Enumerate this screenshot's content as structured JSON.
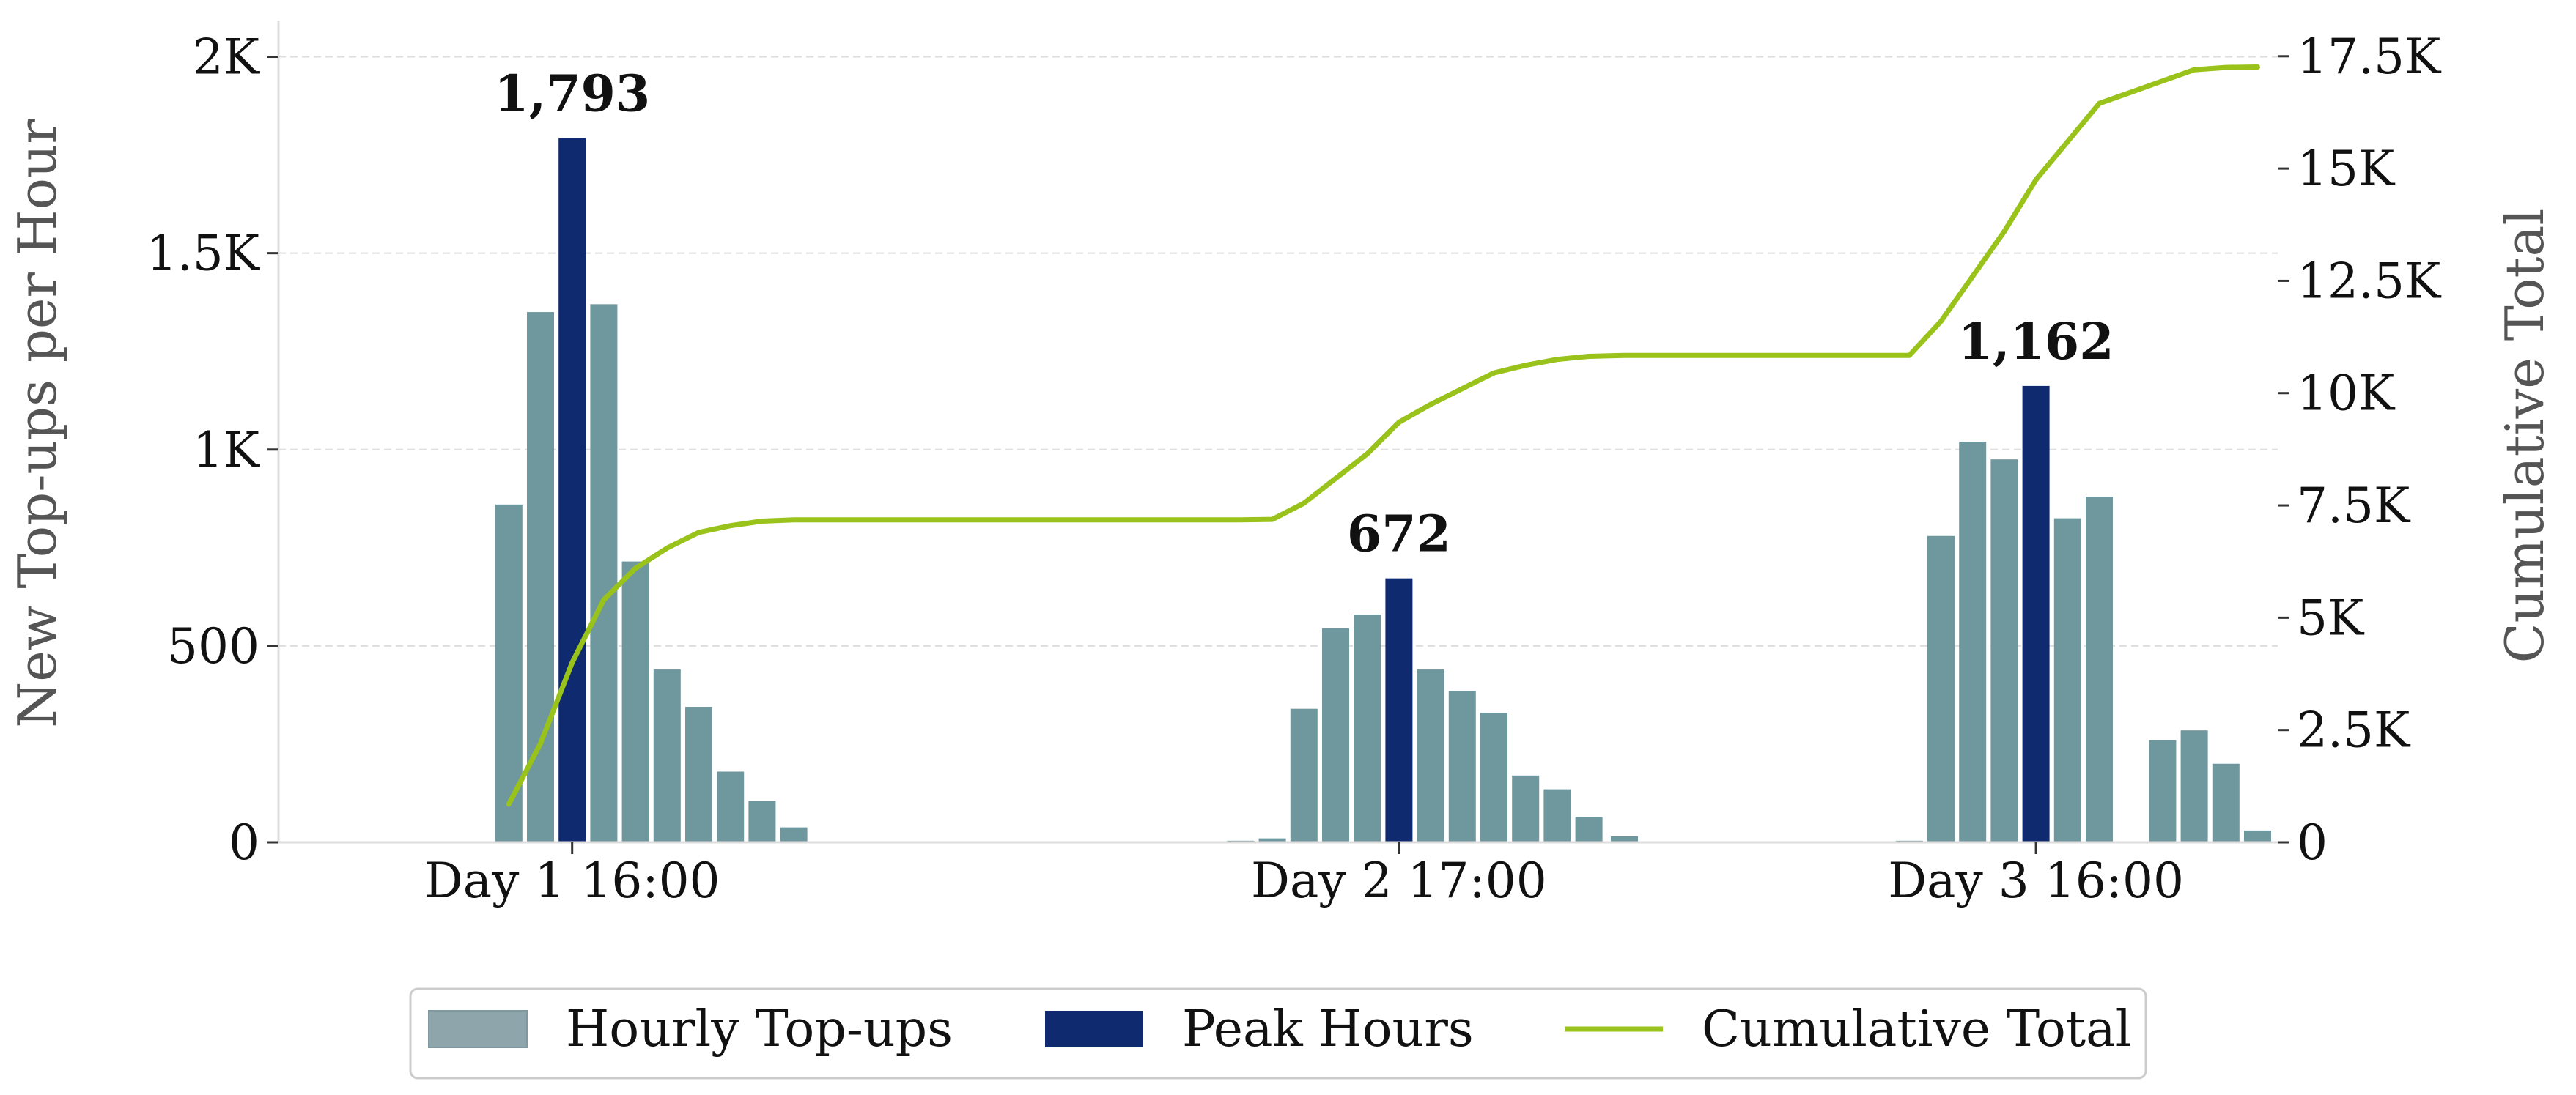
{
  "chart_data": {
    "type": "bar",
    "x_tick_labels": [
      "Day 1 16:00",
      "Day 2 17:00",
      "Day 3 16:00"
    ],
    "ylabel": "New Top-ups per Hour",
    "y2label": "Cumulative Total",
    "ylim": [
      0,
      2070
    ],
    "y2lim": [
      0,
      18100
    ],
    "yticks": [
      0,
      500,
      1000,
      1500,
      2000
    ],
    "ytick_labels": [
      "0",
      "500",
      "1K",
      "1.5K",
      "2K"
    ],
    "y2ticks": [
      0,
      2500,
      5000,
      7500,
      10000,
      12500,
      15000,
      17500
    ],
    "y2tick_labels": [
      "0",
      "2.5K",
      "5K",
      "7.5K",
      "10K",
      "12.5K",
      "15K",
      "17.5K"
    ],
    "grid": "horizontal dashed",
    "legend_position": "bottom-center",
    "colors": {
      "hourly": "#6e979e",
      "peak": "#0f2a6e",
      "cumulative": "#99c31a",
      "hourly_legend": "#8ea6ab"
    },
    "series": [
      {
        "name": "Hourly Top-ups",
        "kind": "bar",
        "points": [
          {
            "day": 1,
            "hour": 14,
            "value": 860
          },
          {
            "day": 1,
            "hour": 15,
            "value": 1350
          },
          {
            "day": 1,
            "hour": 17,
            "value": 1370
          },
          {
            "day": 1,
            "hour": 18,
            "value": 715
          },
          {
            "day": 1,
            "hour": 19,
            "value": 440
          },
          {
            "day": 1,
            "hour": 20,
            "value": 345
          },
          {
            "day": 1,
            "hour": 21,
            "value": 180
          },
          {
            "day": 1,
            "hour": 22,
            "value": 105
          },
          {
            "day": 1,
            "hour": 23,
            "value": 38
          },
          {
            "day": 2,
            "hour": 12,
            "value": 4
          },
          {
            "day": 2,
            "hour": 13,
            "value": 10
          },
          {
            "day": 2,
            "hour": 14,
            "value": 340
          },
          {
            "day": 2,
            "hour": 15,
            "value": 545
          },
          {
            "day": 2,
            "hour": 16,
            "value": 580
          },
          {
            "day": 2,
            "hour": 18,
            "value": 440
          },
          {
            "day": 2,
            "hour": 19,
            "value": 385
          },
          {
            "day": 2,
            "hour": 20,
            "value": 330
          },
          {
            "day": 2,
            "hour": 21,
            "value": 170
          },
          {
            "day": 2,
            "hour": 22,
            "value": 135
          },
          {
            "day": 2,
            "hour": 23,
            "value": 65
          },
          {
            "day": 3,
            "hour": 0,
            "value": 15
          },
          {
            "day": 3,
            "hour": 9,
            "value": 4
          },
          {
            "day": 3,
            "hour": 10,
            "value": 780
          },
          {
            "day": 3,
            "hour": 11,
            "value": 1020
          },
          {
            "day": 3,
            "hour": 12,
            "value": 975
          },
          {
            "day": 3,
            "hour": 14,
            "value": 825
          },
          {
            "day": 3,
            "hour": 15,
            "value": 880
          },
          {
            "day": 3,
            "hour": 17,
            "value": 260
          },
          {
            "day": 3,
            "hour": 18,
            "value": 285
          },
          {
            "day": 3,
            "hour": 19,
            "value": 200
          },
          {
            "day": 3,
            "hour": 20,
            "value": 30
          }
        ]
      },
      {
        "name": "Peak Hours",
        "kind": "bar",
        "points": [
          {
            "day": 1,
            "hour": 16,
            "value": 1793,
            "label": "1,793"
          },
          {
            "day": 2,
            "hour": 17,
            "value": 672,
            "label": "672"
          },
          {
            "day": 3,
            "hour": 13,
            "value": 1162,
            "label": "1,162"
          }
        ]
      },
      {
        "name": "Cumulative Total",
        "kind": "line",
        "axis": "right",
        "points": [
          {
            "day": 1,
            "hour": 14,
            "value": 850
          },
          {
            "day": 1,
            "hour": 15,
            "value": 2200
          },
          {
            "day": 1,
            "hour": 16,
            "value": 4000
          },
          {
            "day": 1,
            "hour": 17,
            "value": 5400
          },
          {
            "day": 1,
            "hour": 18,
            "value": 6100
          },
          {
            "day": 1,
            "hour": 19,
            "value": 6550
          },
          {
            "day": 1,
            "hour": 20,
            "value": 6900
          },
          {
            "day": 1,
            "hour": 21,
            "value": 7050
          },
          {
            "day": 1,
            "hour": 22,
            "value": 7150
          },
          {
            "day": 1,
            "hour": 23,
            "value": 7180
          },
          {
            "day": 2,
            "hour": 12,
            "value": 7180
          },
          {
            "day": 2,
            "hour": 13,
            "value": 7190
          },
          {
            "day": 2,
            "hour": 14,
            "value": 7550
          },
          {
            "day": 2,
            "hour": 15,
            "value": 8100
          },
          {
            "day": 2,
            "hour": 16,
            "value": 8650
          },
          {
            "day": 2,
            "hour": 17,
            "value": 9350
          },
          {
            "day": 2,
            "hour": 18,
            "value": 9750
          },
          {
            "day": 2,
            "hour": 19,
            "value": 10100
          },
          {
            "day": 2,
            "hour": 20,
            "value": 10450
          },
          {
            "day": 2,
            "hour": 21,
            "value": 10620
          },
          {
            "day": 2,
            "hour": 22,
            "value": 10750
          },
          {
            "day": 2,
            "hour": 23,
            "value": 10820
          },
          {
            "day": 3,
            "hour": 0,
            "value": 10840
          },
          {
            "day": 3,
            "hour": 9,
            "value": 10840
          },
          {
            "day": 3,
            "hour": 10,
            "value": 11600
          },
          {
            "day": 3,
            "hour": 11,
            "value": 12600
          },
          {
            "day": 3,
            "hour": 12,
            "value": 13600
          },
          {
            "day": 3,
            "hour": 13,
            "value": 14750
          },
          {
            "day": 3,
            "hour": 14,
            "value": 15600
          },
          {
            "day": 3,
            "hour": 15,
            "value": 16450
          },
          {
            "day": 3,
            "hour": 16,
            "value": 16700
          },
          {
            "day": 3,
            "hour": 17,
            "value": 16950
          },
          {
            "day": 3,
            "hour": 18,
            "value": 17200
          },
          {
            "day": 3,
            "hour": 19,
            "value": 17250
          },
          {
            "day": 3,
            "hour": 20,
            "value": 17260
          }
        ]
      }
    ],
    "legend": [
      {
        "label": "Hourly Top-ups",
        "kind": "patch",
        "color": "#8ea6ab"
      },
      {
        "label": "Peak Hours",
        "kind": "patch",
        "color": "#0f2a6e"
      },
      {
        "label": "Cumulative Total",
        "kind": "line",
        "color": "#99c31a"
      }
    ]
  }
}
